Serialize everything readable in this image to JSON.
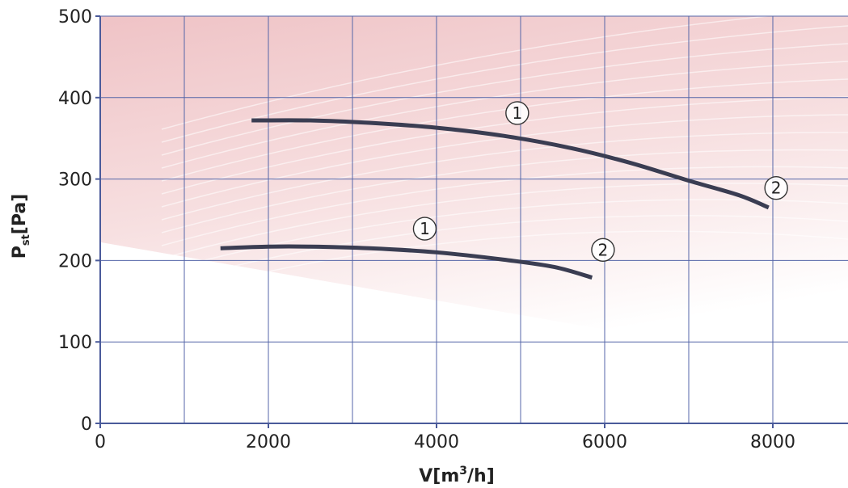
{
  "chart_data": {
    "type": "line",
    "xlabel_main": "V[m",
    "xlabel_sup": "3",
    "xlabel_tail": "/h]",
    "ylabel_main": "P",
    "ylabel_sub": "st",
    "ylabel_tail": "[Pa]",
    "xlim": [
      0,
      9000
    ],
    "ylim": [
      0,
      500
    ],
    "x_grid": [
      1000,
      2000,
      3000,
      4000,
      5000,
      6000,
      7000,
      8000,
      9000
    ],
    "y_grid": [
      100,
      200,
      300,
      400,
      500
    ],
    "xticks": [
      {
        "value": 0,
        "label": "0"
      },
      {
        "value": 2000,
        "label": "2000"
      },
      {
        "value": 4000,
        "label": "4000"
      },
      {
        "value": 6000,
        "label": "6000"
      },
      {
        "value": 8000,
        "label": "8000"
      }
    ],
    "yticks": [
      {
        "value": 0,
        "label": "0"
      },
      {
        "value": 100,
        "label": "100"
      },
      {
        "value": 200,
        "label": "200"
      },
      {
        "value": 300,
        "label": "300"
      },
      {
        "value": 400,
        "label": "400"
      },
      {
        "value": 500,
        "label": "500"
      }
    ],
    "grid": true,
    "series": [
      {
        "points": [
          [
            1800,
            372
          ],
          [
            2500,
            372
          ],
          [
            3200,
            369
          ],
          [
            4000,
            363
          ],
          [
            4800,
            353
          ],
          [
            5600,
            338
          ],
          [
            6300,
            320
          ],
          [
            7000,
            298
          ],
          [
            7600,
            280
          ],
          [
            7950,
            265
          ]
        ],
        "color": "#3a3d52"
      },
      {
        "points": [
          [
            1430,
            215
          ],
          [
            2000,
            217
          ],
          [
            2500,
            217
          ],
          [
            3200,
            215
          ],
          [
            4000,
            210
          ],
          [
            4800,
            201
          ],
          [
            5400,
            192
          ],
          [
            5850,
            179
          ]
        ],
        "color": "#3a3d52"
      }
    ],
    "markers": [
      {
        "label": "1",
        "x": 4960,
        "y": 381
      },
      {
        "label": "2",
        "x": 8040,
        "y": 289
      },
      {
        "label": "1",
        "x": 3860,
        "y": 239
      },
      {
        "label": "2",
        "x": 5980,
        "y": 213
      }
    ]
  },
  "colors": {
    "grid": "#5566a8",
    "axis": "#4a5a9a",
    "curve": "#3a3d52",
    "background_tint": "#e9a7a9"
  }
}
